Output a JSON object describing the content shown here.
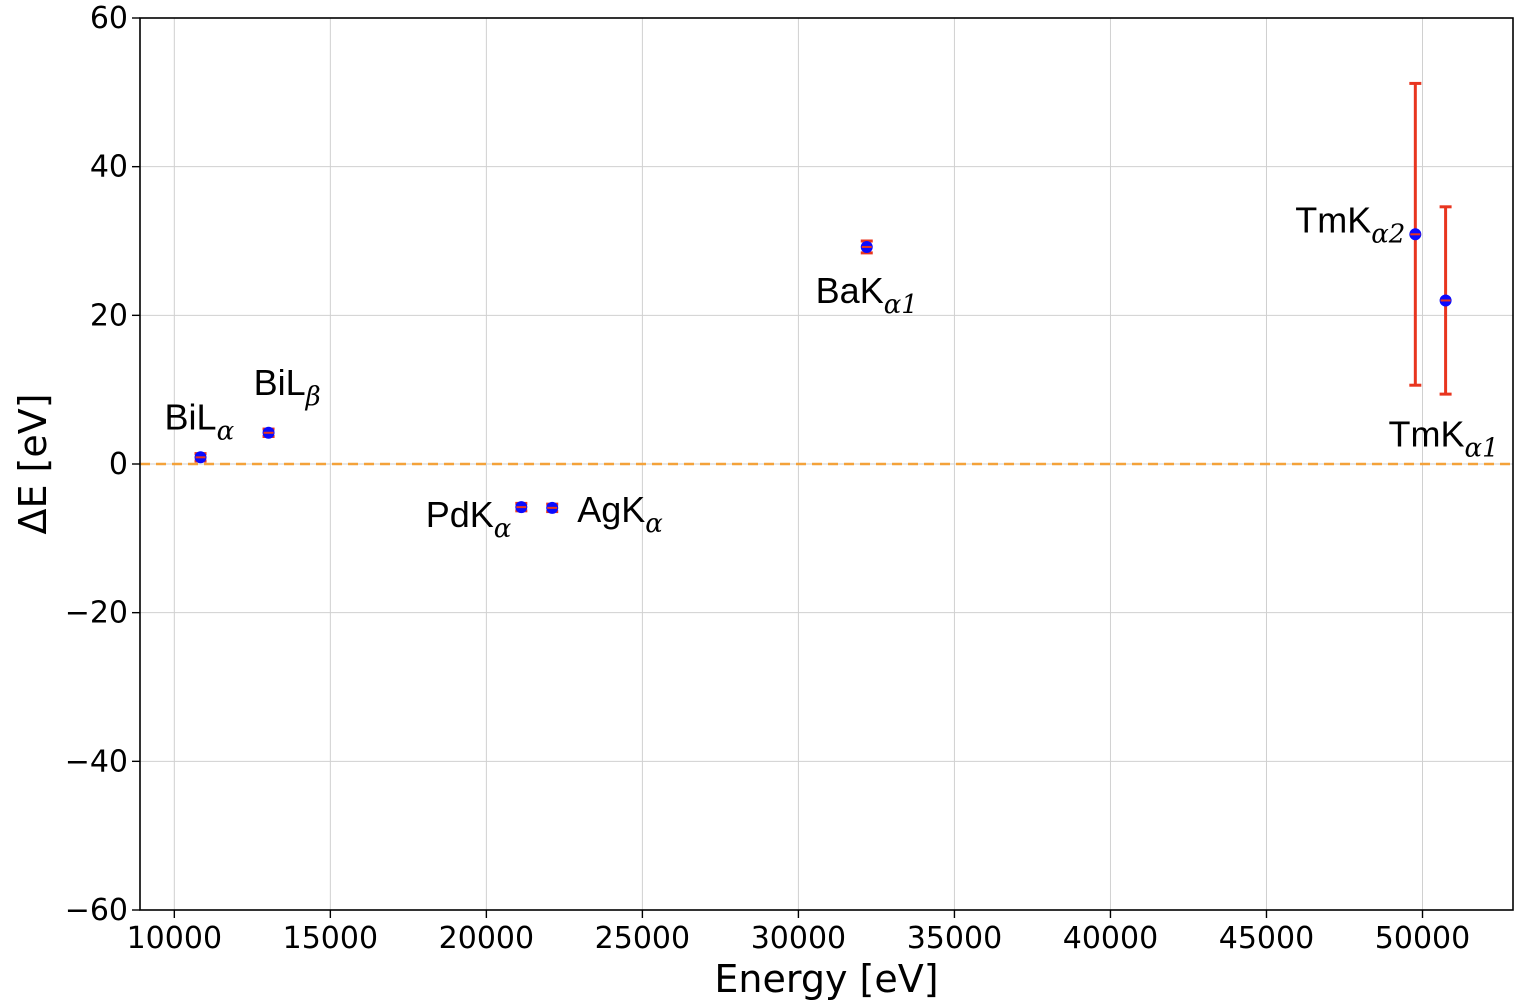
{
  "chart_data": {
    "type": "scatter",
    "title": "",
    "xlabel": "Energy [eV]",
    "ylabel": "ΔE [eV]",
    "xlim": [
      8900,
      52900
    ],
    "ylim": [
      -60,
      60
    ],
    "xticks": [
      10000,
      15000,
      20000,
      25000,
      30000,
      35000,
      40000,
      45000,
      50000
    ],
    "yticks": [
      -60,
      -40,
      -20,
      0,
      20,
      40,
      60
    ],
    "xtick_labels": [
      "10000",
      "15000",
      "20000",
      "25000",
      "30000",
      "35000",
      "40000",
      "45000",
      "50000"
    ],
    "ytick_labels": [
      "−60",
      "−40",
      "−20",
      "0",
      "20",
      "40",
      "60"
    ],
    "grid": true,
    "reference_line": {
      "y": 0,
      "style": "dashed",
      "color": "#f4a23a"
    },
    "marker_color": "#0a0aff",
    "errorbar_color": "#e8351f",
    "points": [
      {
        "base": "BiL",
        "sub": "α",
        "x": 10840,
        "y": 0.9,
        "err": 0.5,
        "label_pos": "above-left"
      },
      {
        "base": "BiL",
        "sub": "β",
        "x": 13020,
        "y": 4.2,
        "err": 0.5,
        "label_pos": "above"
      },
      {
        "base": "PdK",
        "sub": "α",
        "x": 21120,
        "y": -5.8,
        "err": 0.5,
        "label_pos": "left"
      },
      {
        "base": "AgK",
        "sub": "α",
        "x": 22110,
        "y": -5.9,
        "err": 0.5,
        "label_pos": "right"
      },
      {
        "base": "BaK",
        "sub": "α1",
        "x": 32190,
        "y": 29.2,
        "err": 0.8,
        "label_pos": "below"
      },
      {
        "base": "TmK",
        "sub": "α2",
        "x": 49770,
        "y": 30.9,
        "err": 20.3,
        "label_pos": "left"
      },
      {
        "base": "TmK",
        "sub": "α1",
        "x": 50740,
        "y": 22.0,
        "err": 12.6,
        "label_pos": "below"
      }
    ]
  }
}
